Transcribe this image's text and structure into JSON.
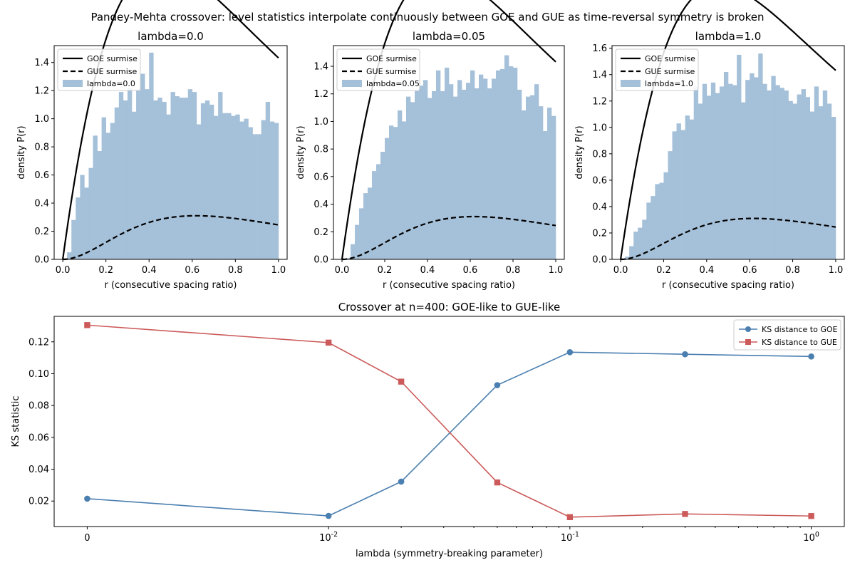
{
  "suptitle": "Pandey-Mehta crossover: level statistics interpolate continuously between GOE and GUE as time-reversal symmetry is broken",
  "chart_data": [
    {
      "type": "bar",
      "title": "lambda=0.0",
      "xlabel": "r (consecutive spacing ratio)",
      "ylabel": "density P(r)",
      "xlim": [
        -0.04,
        1.04
      ],
      "ylim": [
        0,
        1.52
      ],
      "xticks": [
        "0.0",
        "0.2",
        "0.4",
        "0.6",
        "0.8",
        "1.0"
      ],
      "yticks": [
        "0.0",
        "0.2",
        "0.4",
        "0.6",
        "0.8",
        "1.0",
        "1.2",
        "1.4"
      ],
      "legend": [
        "GOE surmise",
        "GUE surmise",
        "lambda=0.0"
      ],
      "legend_loc": "upper-left",
      "bin_width": 0.02,
      "values": [
        0.0,
        0.05,
        0.28,
        0.44,
        0.6,
        0.51,
        0.65,
        0.88,
        0.77,
        1.01,
        0.9,
        0.97,
        1.08,
        1.19,
        1.13,
        1.22,
        1.05,
        1.2,
        1.32,
        1.21,
        1.47,
        1.13,
        1.15,
        1.12,
        1.03,
        1.19,
        1.16,
        1.15,
        1.15,
        1.21,
        1.19,
        0.96,
        1.11,
        1.13,
        1.1,
        1.02,
        1.19,
        1.04,
        1.04,
        1.02,
        1.03,
        0.98,
        1.0,
        0.94,
        0.89,
        0.89,
        0.99,
        1.12,
        0.98,
        0.97
      ]
    },
    {
      "type": "bar",
      "title": "lambda=0.05",
      "xlabel": "r (consecutive spacing ratio)",
      "ylabel": "density P(r)",
      "xlim": [
        -0.04,
        1.04
      ],
      "ylim": [
        0,
        1.55
      ],
      "xticks": [
        "0.0",
        "0.2",
        "0.4",
        "0.6",
        "0.8",
        "1.0"
      ],
      "yticks": [
        "0.0",
        "0.2",
        "0.4",
        "0.6",
        "0.8",
        "1.0",
        "1.2",
        "1.4"
      ],
      "legend": [
        "GOE surmise",
        "GUE surmise",
        "lambda=0.05"
      ],
      "legend_loc": "upper-left",
      "bin_width": 0.02,
      "values": [
        0.0,
        0.01,
        0.11,
        0.25,
        0.37,
        0.48,
        0.52,
        0.64,
        0.69,
        0.78,
        0.88,
        0.97,
        0.96,
        1.08,
        1.0,
        1.18,
        1.14,
        1.22,
        1.26,
        1.3,
        1.17,
        1.22,
        1.37,
        1.22,
        1.39,
        1.27,
        1.18,
        1.3,
        1.23,
        1.28,
        1.37,
        1.24,
        1.34,
        1.31,
        1.24,
        1.31,
        1.37,
        1.38,
        1.48,
        1.4,
        1.39,
        1.23,
        1.08,
        1.18,
        1.19,
        1.27,
        1.11,
        0.93,
        1.1,
        1.04
      ]
    },
    {
      "type": "bar",
      "title": "lambda=1.0",
      "xlabel": "r (consecutive spacing ratio)",
      "ylabel": "density P(r)",
      "xlim": [
        -0.04,
        1.04
      ],
      "ylim": [
        0,
        1.62
      ],
      "xticks": [
        "0.0",
        "0.2",
        "0.4",
        "0.6",
        "0.8",
        "1.0"
      ],
      "yticks": [
        "0.0",
        "0.2",
        "0.4",
        "0.6",
        "0.8",
        "1.0",
        "1.2",
        "1.4",
        "1.6"
      ],
      "legend": [
        "GOE surmise",
        "GUE surmise",
        "lambda=1.0"
      ],
      "legend_loc": "upper-left",
      "bin_width": 0.02,
      "values": [
        0.0,
        0.02,
        0.1,
        0.21,
        0.24,
        0.3,
        0.43,
        0.48,
        0.57,
        0.58,
        0.66,
        0.82,
        0.97,
        1.03,
        0.98,
        1.09,
        1.06,
        1.31,
        1.18,
        1.33,
        1.24,
        1.34,
        1.26,
        1.31,
        1.42,
        1.33,
        1.32,
        1.55,
        1.19,
        1.36,
        1.41,
        1.38,
        1.56,
        1.33,
        1.28,
        1.39,
        1.32,
        1.3,
        1.28,
        1.2,
        1.18,
        1.25,
        1.29,
        1.23,
        1.12,
        1.31,
        1.16,
        1.28,
        1.18,
        1.08
      ]
    },
    {
      "type": "line",
      "title": "Crossover at n=400: GOE-like to GUE-like",
      "xlabel": "lambda (symmetry-breaking parameter)",
      "ylabel": "KS statistic",
      "x_scale": "symlog",
      "xticks": [
        "0",
        "10^-2",
        "10^-1",
        "10^0"
      ],
      "yticks": [
        "0.02",
        "0.04",
        "0.06",
        "0.08",
        "0.10",
        "0.12"
      ],
      "ylim": [
        0.004,
        0.136
      ],
      "legend_loc": "upper-right",
      "x": [
        0,
        0.01,
        0.02,
        0.05,
        0.1,
        0.3,
        1.0
      ],
      "series": [
        {
          "name": "KS distance to GOE",
          "color": "#4a7fb0",
          "marker": "circle",
          "values": [
            0.0215,
            0.0107,
            0.0322,
            0.0928,
            0.1135,
            0.1122,
            0.1108
          ]
        },
        {
          "name": "KS distance to GUE",
          "color": "#cc5a5a",
          "marker": "square",
          "values": [
            0.1305,
            0.1195,
            0.095,
            0.0317,
            0.0099,
            0.0119,
            0.0106
          ]
        }
      ]
    }
  ]
}
